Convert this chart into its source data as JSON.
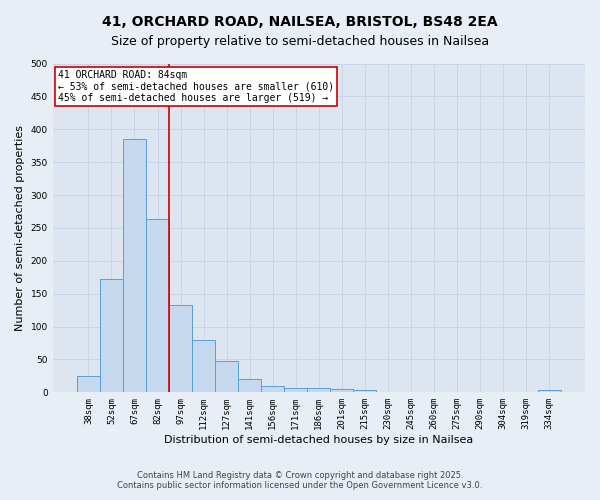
{
  "title_line1": "41, ORCHARD ROAD, NAILSEA, BRISTOL, BS48 2EA",
  "title_line2": "Size of property relative to semi-detached houses in Nailsea",
  "xlabel": "Distribution of semi-detached houses by size in Nailsea",
  "ylabel": "Number of semi-detached properties",
  "categories": [
    "38sqm",
    "52sqm",
    "67sqm",
    "82sqm",
    "97sqm",
    "112sqm",
    "127sqm",
    "141sqm",
    "156sqm",
    "171sqm",
    "186sqm",
    "201sqm",
    "215sqm",
    "230sqm",
    "245sqm",
    "260sqm",
    "275sqm",
    "290sqm",
    "304sqm",
    "319sqm",
    "334sqm"
  ],
  "values": [
    25,
    173,
    385,
    263,
    133,
    80,
    47,
    20,
    10,
    6,
    6,
    5,
    3,
    0,
    0,
    0,
    0,
    0,
    0,
    0,
    4
  ],
  "bar_color": "#c5d8ed",
  "bar_edge_color": "#5a9fd4",
  "property_line_x": 3.5,
  "property_line_color": "#cc0000",
  "annotation_line1": "41 ORCHARD ROAD: 84sqm",
  "annotation_line2": "← 53% of semi-detached houses are smaller (610)",
  "annotation_line3": "45% of semi-detached houses are larger (519) →",
  "annotation_box_color": "#ffffff",
  "annotation_box_edge": "#cc0000",
  "grid_color": "#c8d4e8",
  "background_color": "#dde6f0",
  "fig_background_color": "#e8eef5",
  "ylim": [
    0,
    500
  ],
  "yticks": [
    0,
    50,
    100,
    150,
    200,
    250,
    300,
    350,
    400,
    450,
    500
  ],
  "footer_line1": "Contains HM Land Registry data © Crown copyright and database right 2025.",
  "footer_line2": "Contains public sector information licensed under the Open Government Licence v3.0.",
  "title1_fontsize": 10,
  "title2_fontsize": 9,
  "axis_label_fontsize": 8,
  "tick_fontsize": 6.5,
  "annotation_fontsize": 7,
  "footer_fontsize": 6
}
